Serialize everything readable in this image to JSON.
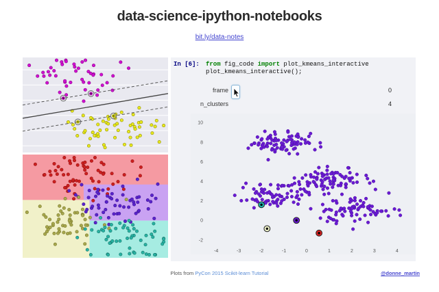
{
  "header": {
    "title": "data-science-ipython-notebooks",
    "link": "bit.ly/data-notes"
  },
  "notebook": {
    "prompt": "In [6]:",
    "code": {
      "lines": [
        [
          {
            "text": "from",
            "type": "kw"
          },
          {
            "text": " fig_code ",
            "type": "pl"
          },
          {
            "text": "import",
            "type": "kw"
          },
          {
            "text": " plot_kmeans_interactive",
            "type": "pl"
          }
        ],
        [
          {
            "text": "plot_kmeans_interactive();",
            "type": "pl"
          }
        ]
      ]
    },
    "widgets": [
      {
        "label": "frame",
        "value": "0"
      },
      {
        "label": "n_clusters",
        "value": "4"
      }
    ]
  },
  "footer": {
    "caption_prefix": "Plots from ",
    "caption_link": "PyCon 2015 Scikit-learn Tutorial",
    "handle": "@donne_martin"
  },
  "colors": {
    "link": "#4143cf",
    "footer_link": "#5b8dd6",
    "prompt_blue": "#000080",
    "keyword_green": "#008000",
    "panel_bg": "#f1f2f6"
  },
  "chart_data": [
    {
      "id": "svm-margin",
      "type": "scatter",
      "description": "SVM decision boundary with margins and circled support vectors",
      "seed": 42,
      "background": "#e9e9f0",
      "gridlines_y": [
        0.13,
        0.29,
        0.45,
        0.61,
        0.77,
        0.93
      ],
      "gridline_color": "#ffffff",
      "clusters": [
        {
          "name": "class-magenta",
          "color": "#d011d0",
          "edge": "#8a008a",
          "n": 46,
          "cx": 0.34,
          "cy": 0.22,
          "sx": 0.16,
          "sy": 0.12,
          "ymax": 0.46
        },
        {
          "name": "class-yellow",
          "color": "#e8e81e",
          "edge": "#909000",
          "n": 56,
          "cx": 0.61,
          "cy": 0.73,
          "sx": 0.18,
          "sy": 0.1,
          "ymin": 0.53,
          "ymax": 0.97
        }
      ],
      "lines": [
        {
          "name": "margin-upper",
          "style": "dashed",
          "x1": 0,
          "y1": 0.5,
          "x2": 1,
          "y2": 0.245
        },
        {
          "name": "decision-boundary",
          "style": "solid",
          "x1": 0,
          "y1": 0.64,
          "x2": 1,
          "y2": 0.38
        },
        {
          "name": "margin-lower",
          "style": "dashed",
          "x1": 0,
          "y1": 0.775,
          "x2": 1,
          "y2": 0.52
        }
      ],
      "support_vectors": [
        {
          "x": 0.28,
          "y": 0.4286,
          "fill": "#d011d0",
          "edge": "#8a008a"
        },
        {
          "x": 0.47,
          "y": 0.3802,
          "fill": "#d011d0",
          "edge": "#8a008a"
        },
        {
          "x": 0.38,
          "y": 0.678,
          "fill": "#e8e81e",
          "edge": "#909000"
        },
        {
          "x": 0.625,
          "y": 0.6156,
          "fill": "#e8e81e",
          "edge": "#909000"
        }
      ]
    },
    {
      "id": "kmeans-regions",
      "type": "scatter",
      "description": "K-means clustering with colored Voronoi regions",
      "seed": 42,
      "regions": [
        {
          "name": "region-red",
          "color": "#f59aa2",
          "x": 0,
          "y": 0,
          "w": 1,
          "h": 0.44
        },
        {
          "name": "region-purple",
          "color": "#c9a2f2",
          "x": 0.42,
          "y": 0.29,
          "w": 0.58,
          "h": 0.35
        },
        {
          "name": "region-yellow",
          "color": "#f1f1c9",
          "x": 0,
          "y": 0.44,
          "w": 0.46,
          "h": 0.56
        },
        {
          "name": "region-cyan",
          "color": "#a6ece2",
          "x": 0.46,
          "y": 0.64,
          "w": 0.54,
          "h": 0.36
        }
      ],
      "clusters": [
        {
          "name": "cluster-red",
          "color": "#cc2020",
          "edge": "#991111",
          "n": 62,
          "cx": 0.4,
          "cy": 0.22,
          "sx": 0.17,
          "sy": 0.11
        },
        {
          "name": "cluster-purple",
          "color": "#5a23cc",
          "edge": "#3d1596",
          "n": 60,
          "cx": 0.63,
          "cy": 0.46,
          "sx": 0.15,
          "sy": 0.1
        },
        {
          "name": "cluster-olive",
          "color": "#a8a84e",
          "edge": "#77772a",
          "n": 56,
          "cx": 0.32,
          "cy": 0.67,
          "sx": 0.15,
          "sy": 0.1
        },
        {
          "name": "cluster-teal",
          "color": "#28b2a2",
          "edge": "#17776d",
          "n": 56,
          "cx": 0.7,
          "cy": 0.81,
          "sx": 0.15,
          "sy": 0.09
        }
      ]
    },
    {
      "id": "kmeans-interactive",
      "type": "scatter",
      "description": "plot_kmeans_interactive output: 4 point clusters with cluster centers",
      "seed": 42,
      "plot_bg": "#eef0f4",
      "tick_color": "#555555",
      "xlim": [
        -4.4,
        4.4
      ],
      "ylim": [
        -2.5,
        10.5
      ],
      "xticks": [
        -4,
        -3,
        -2,
        -1,
        0,
        1,
        2,
        3,
        4
      ],
      "yticks": [
        -2,
        0,
        2,
        4,
        6,
        8,
        10
      ],
      "point_color": "#6a1bd2",
      "point_edge": "#4a0fa0",
      "clusters": [
        {
          "cx": -1.2,
          "cy": 8.0,
          "sx": 0.75,
          "sy": 0.55,
          "n": 85
        },
        {
          "cx": 1.15,
          "cy": 4.2,
          "sx": 0.95,
          "sy": 0.6,
          "n": 85
        },
        {
          "cx": -1.45,
          "cy": 2.6,
          "sx": 0.8,
          "sy": 0.6,
          "n": 75
        },
        {
          "cx": 2.1,
          "cy": 1.0,
          "sx": 0.9,
          "sy": 0.65,
          "n": 75
        }
      ],
      "centers": [
        {
          "x": -2.0,
          "y": 1.6,
          "color": "#1fb5ad"
        },
        {
          "x": -0.45,
          "y": 0.0,
          "color": "#6a1bd2"
        },
        {
          "x": -1.75,
          "y": -0.85,
          "color": "#ecf0c8"
        },
        {
          "x": 0.55,
          "y": -1.3,
          "color": "#dd2222"
        }
      ]
    }
  ]
}
